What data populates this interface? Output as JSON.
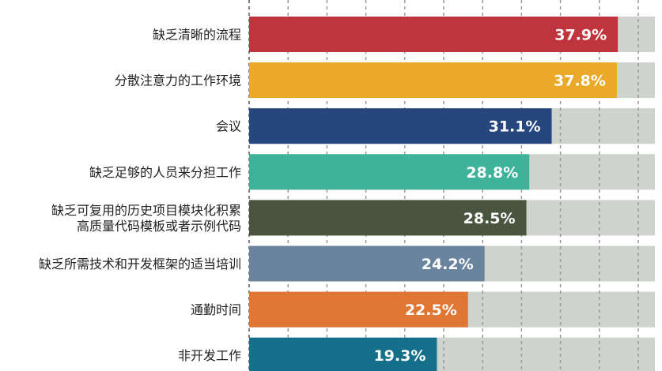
{
  "chart_data": {
    "type": "bar",
    "orientation": "horizontal",
    "categories": [
      [
        "缺乏清晰的流程"
      ],
      [
        "分散注意力的工作环境"
      ],
      [
        "会议"
      ],
      [
        "缺乏足够的人员来分担工作"
      ],
      [
        "缺乏可复用的历史项目模块化积累",
        "高质量代码模板或者示例代码"
      ],
      [
        "缺乏所需技术和开发框架的适当培训"
      ],
      [
        "通勤时间"
      ],
      [
        "非开发工作"
      ]
    ],
    "values": [
      37.9,
      37.8,
      31.1,
      28.8,
      28.5,
      24.2,
      22.5,
      19.3
    ],
    "value_labels": [
      "37.9%",
      "37.8%",
      "31.1%",
      "28.8%",
      "28.5%",
      "24.2%",
      "22.5%",
      "19.3%"
    ],
    "colors": [
      "#c0353d",
      "#eba92a",
      "#25477e",
      "#3fb39a",
      "#4a5540",
      "#6b849e",
      "#e07634",
      "#136f8a"
    ],
    "background_bar_color": "#cfd3cd",
    "grid": "vertical dashed",
    "xlim": [
      0,
      40
    ]
  }
}
